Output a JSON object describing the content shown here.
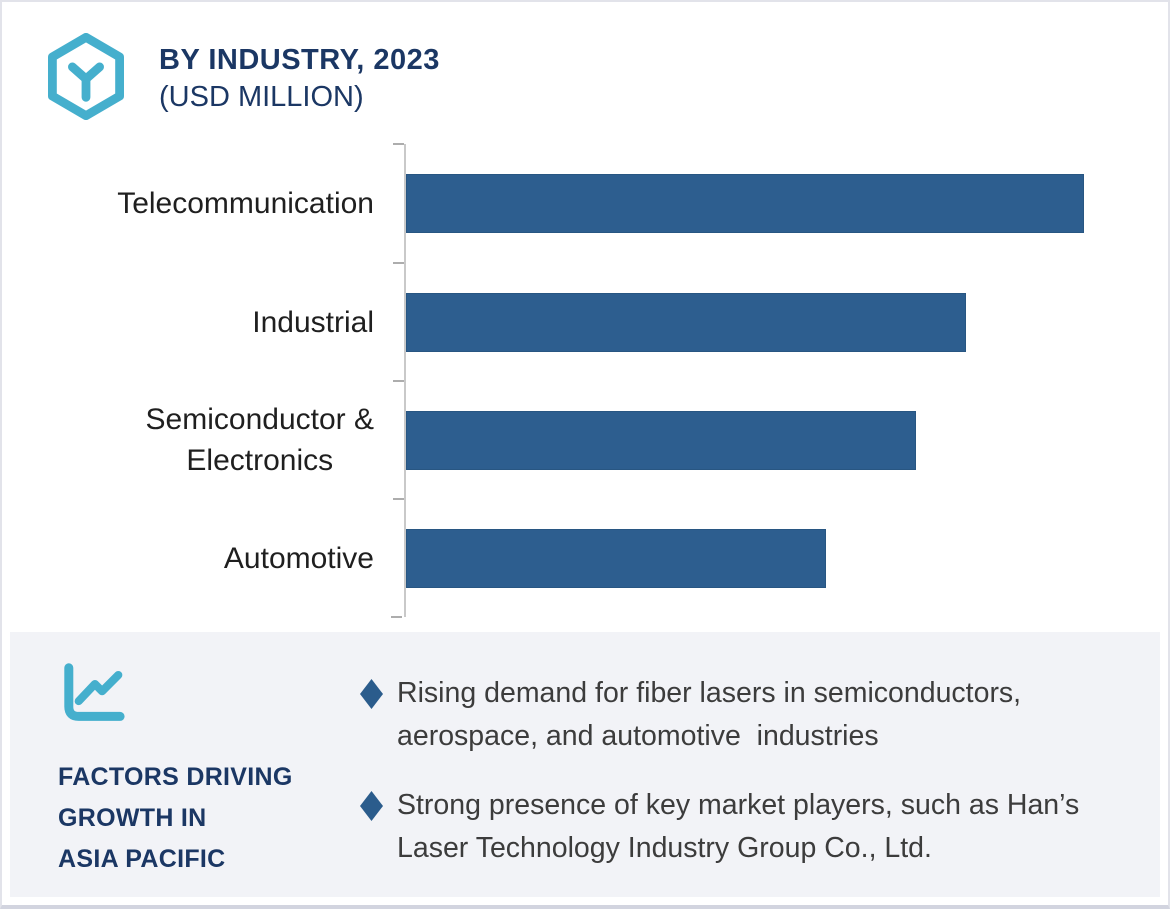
{
  "header": {
    "logo_icon": "hexagon-y-logo-icon",
    "title": "BY INDUSTRY, 2023",
    "subtitle": "(USD MILLION)"
  },
  "chart_data": {
    "type": "bar",
    "orientation": "horizontal",
    "title": "BY INDUSTRY, 2023 (USD MILLION)",
    "categories": [
      "Telecommunication",
      "Industrial",
      "Semiconductor &\nElectronics",
      "Automotive"
    ],
    "values": [
      100,
      82.6,
      75.2,
      61.9
    ],
    "values_note": "No numeric axis or data labels are shown in the image; values are relative bar lengths estimated from pixels with Telecommunication = 100",
    "xlabel": "",
    "ylabel": "",
    "xlim": [
      0,
      113
    ],
    "grid": false,
    "legend": false,
    "bar_color": "#2D5E8F"
  },
  "factors": {
    "icon": "line-chart-icon",
    "heading_lines": [
      "FACTORS DRIVING",
      "GROWTH IN",
      "ASIA PACIFIC"
    ],
    "bullets": [
      "Rising demand for fiber lasers in semiconductors, aerospace, and automotive  industries",
      "Strong presence of key market players, such as Han’s Laser Technology Industry Group Co., Ltd."
    ]
  },
  "colors": {
    "accent_teal": "#45AFCD",
    "bar_blue": "#2D5E8F",
    "navy": "#1B3764",
    "panel_bg": "#F2F3F7",
    "axis_gray": "#C9C9C9",
    "body_text": "#3C3C3C"
  }
}
